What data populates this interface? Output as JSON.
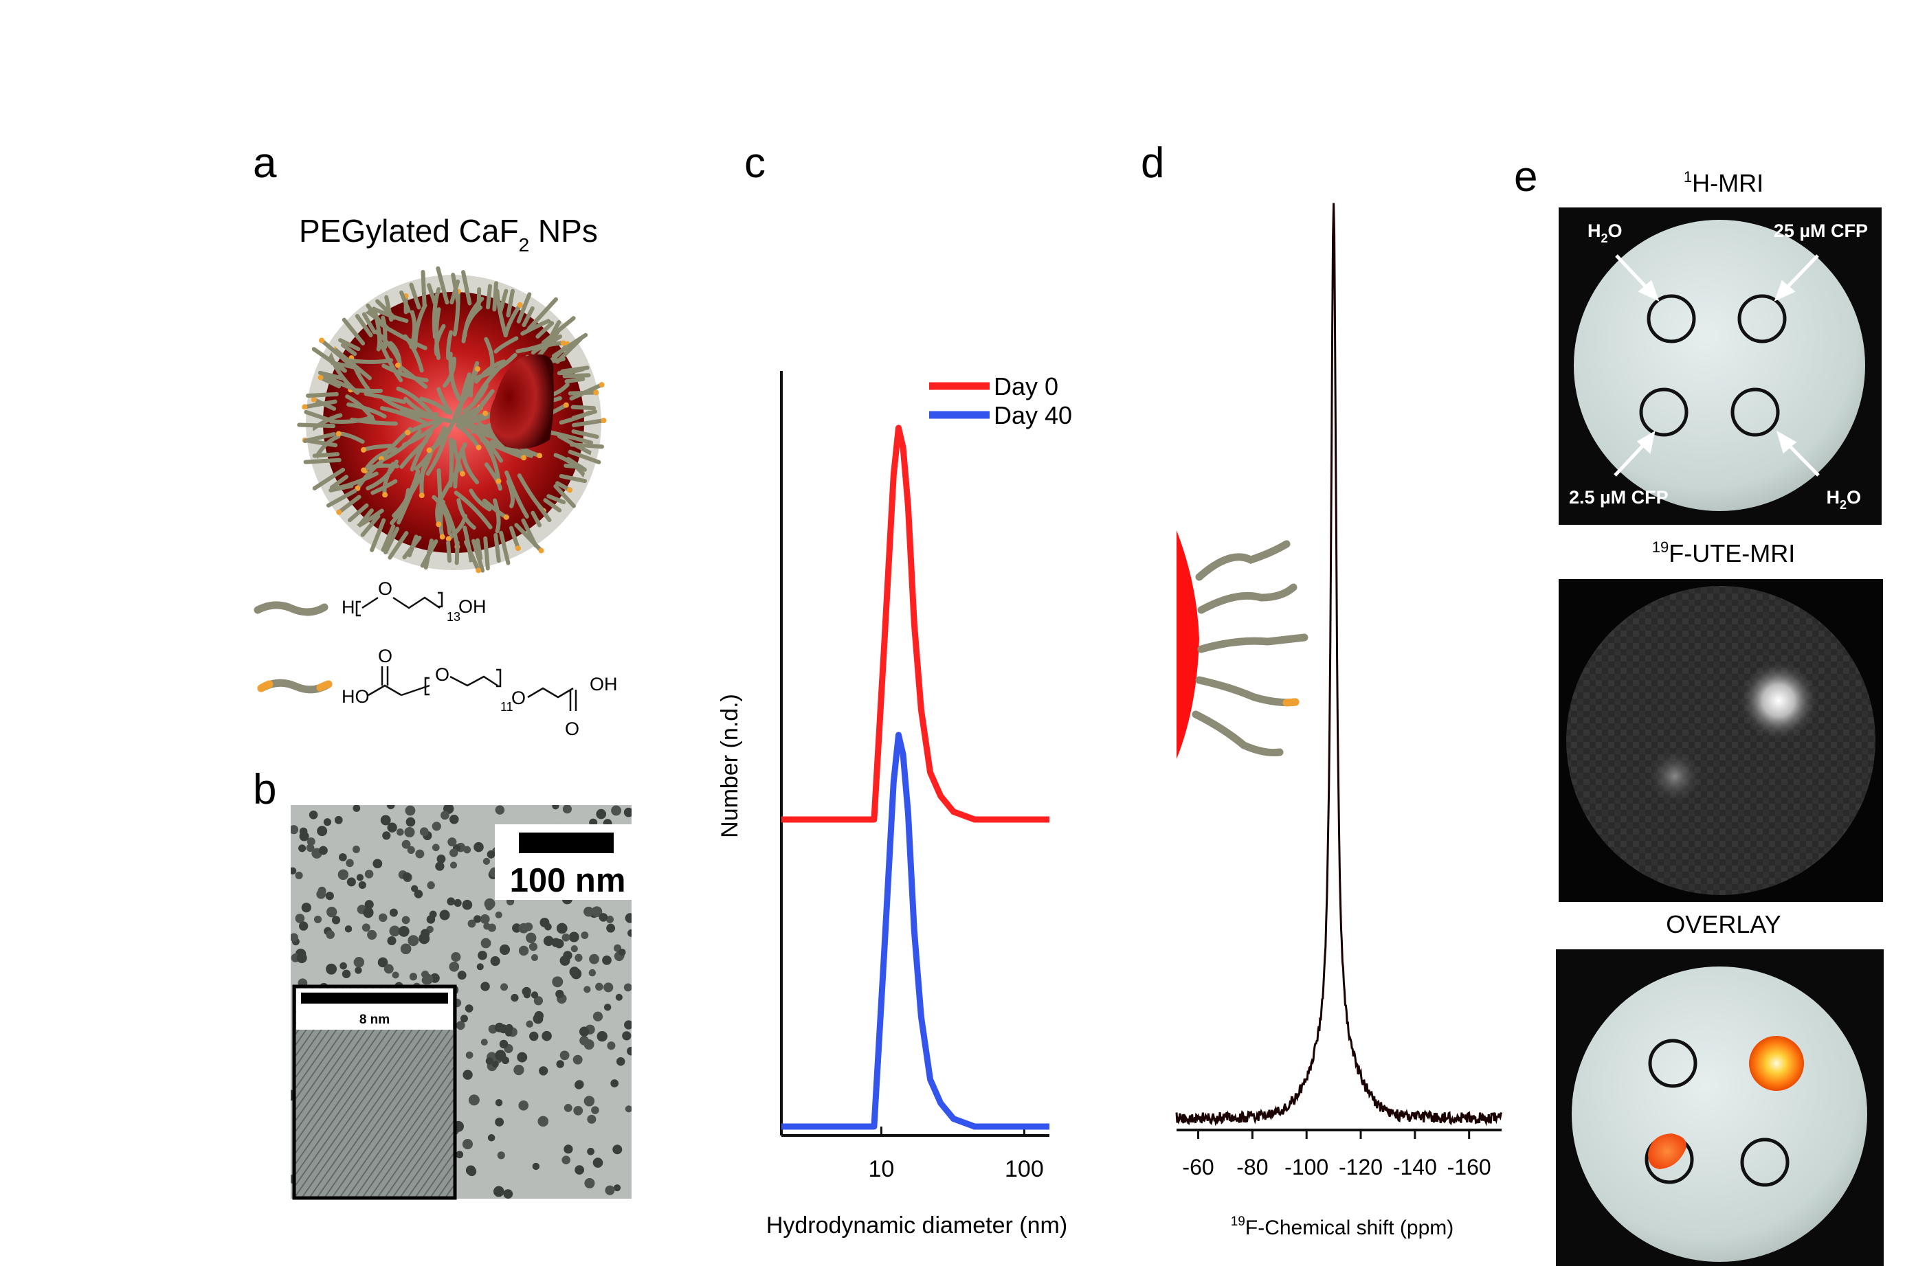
{
  "panel_labels": [
    "a",
    "b",
    "c",
    "d",
    "e"
  ],
  "panel_a": {
    "title": "PEGylated CaF",
    "title_sub": "2",
    "title_tail": " NPs",
    "legend_row1": {
      "h": "H",
      "o": "O",
      "n": "13",
      "oh": "OH"
    },
    "legend_row2": {
      "ho": "HO",
      "o_top": "O",
      "o_mid": "O",
      "o_mid2": "O",
      "n": "11",
      "oh": "OH",
      "o_bot": "O"
    }
  },
  "panel_b": {
    "scale_main": "100 nm",
    "scale_inset": "8 nm"
  },
  "panel_e": {
    "title_h": "H-MRI",
    "title_h_sup": "1",
    "title_f": "F-UTE-MRI",
    "title_f_sup": "19",
    "title_overlay": "OVERLAY",
    "ann_tl": "H",
    "ann_tl_sub": "2",
    "ann_tl_tail": "O",
    "ann_tr": "25 µM CFP",
    "ann_bl": "2.5 µM CFP",
    "ann_br": "H",
    "ann_br_sub": "2",
    "ann_br_tail": "O"
  },
  "chart_data": [
    {
      "type": "line",
      "panel": "c",
      "xlabel": "Hydrodynamic diameter (nm)",
      "ylabel": "Number  (n.d.)",
      "x_scale": "log",
      "xlim": [
        2,
        150
      ],
      "xticks": [
        "10",
        "100"
      ],
      "legend_position": "top-right",
      "series": [
        {
          "name": "Day 0",
          "color": "#ff2020",
          "offset": 1.0,
          "x": [
            2,
            8.9,
            10.5,
            12.2,
            13.2,
            14.2,
            15.4,
            17,
            19,
            22,
            26,
            32,
            45,
            150
          ],
          "y": [
            0,
            0,
            0.45,
            0.88,
            1.0,
            0.95,
            0.8,
            0.5,
            0.28,
            0.12,
            0.06,
            0.02,
            0,
            0
          ]
        },
        {
          "name": "Day 40",
          "color": "#3355ee",
          "offset": 0.0,
          "x": [
            2,
            8.9,
            10.5,
            12.2,
            13.2,
            14.2,
            15.4,
            17,
            19,
            22,
            26,
            32,
            45,
            150
          ],
          "y": [
            0,
            0,
            0.45,
            0.88,
            1.0,
            0.95,
            0.8,
            0.5,
            0.28,
            0.12,
            0.06,
            0.02,
            0,
            0
          ]
        }
      ]
    },
    {
      "type": "line",
      "panel": "d",
      "xlabel_sup": "19",
      "xlabel": "F-Chemical shift (ppm)",
      "ylabel": "",
      "xlim": [
        -52,
        -172
      ],
      "xticks": [
        "-60",
        "-80",
        "-100",
        "-120",
        "-140",
        "-160"
      ],
      "xtick_values": [
        -60,
        -80,
        -100,
        -120,
        -140,
        -160
      ],
      "peak_ppm": -110,
      "series": [
        {
          "name": "",
          "color": "#1a0000",
          "peak": -110,
          "width_ppm": 1.2
        }
      ]
    }
  ]
}
